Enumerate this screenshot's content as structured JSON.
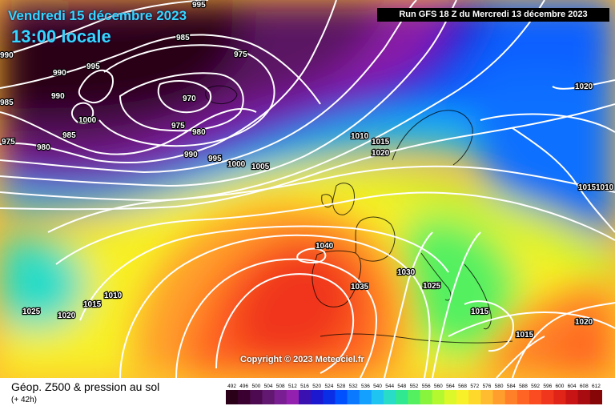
{
  "header": {
    "date_line": "Vendredi 15 décembre 2023",
    "time_line": "13:00 locale",
    "run_info": "Run GFS 18 Z du Mercredi 13 décembre 2023",
    "copyright": "Copyright © 2023 Meteociel.fr"
  },
  "legend": {
    "title": "Géop. Z500 & pression au sol",
    "subtitle": "(+ 42h)",
    "scale_values": [
      "492",
      "496",
      "500",
      "504",
      "508",
      "512",
      "516",
      "520",
      "524",
      "528",
      "532",
      "536",
      "540",
      "544",
      "548",
      "552",
      "556",
      "560",
      "564",
      "568",
      "572",
      "576",
      "580",
      "584",
      "588",
      "592",
      "596",
      "600",
      "604",
      "608",
      "612"
    ],
    "scale_colors": [
      "#2a0018",
      "#3a0030",
      "#4e0a50",
      "#621870",
      "#7a1e94",
      "#9420b0",
      "#3a10b0",
      "#1c18d0",
      "#0a2ee6",
      "#0050ff",
      "#0a78ff",
      "#14a0ff",
      "#20c4f0",
      "#28dcc8",
      "#30e890",
      "#54f060",
      "#88f43c",
      "#b4f830",
      "#dcf82a",
      "#f8f028",
      "#ffd82c",
      "#ffbc30",
      "#ff9e2c",
      "#ff8028",
      "#ff6424",
      "#fa4c20",
      "#f0361c",
      "#e02418",
      "#c81414",
      "#a80c10",
      "#860608"
    ]
  },
  "isobar_labels": [
    {
      "text": "995"
    },
    {
      "text": "985"
    },
    {
      "text": "975"
    },
    {
      "text": "990"
    },
    {
      "text": "995"
    },
    {
      "text": "990"
    },
    {
      "text": "985"
    },
    {
      "text": "970"
    },
    {
      "text": "990"
    },
    {
      "text": "1000"
    },
    {
      "text": "985"
    },
    {
      "text": "975"
    },
    {
      "text": "980"
    },
    {
      "text": "975"
    },
    {
      "text": "980"
    },
    {
      "text": "990"
    },
    {
      "text": "995"
    },
    {
      "text": "1000"
    },
    {
      "text": "1005"
    },
    {
      "text": "1010"
    },
    {
      "text": "1015"
    },
    {
      "text": "1020"
    },
    {
      "text": "1020"
    },
    {
      "text": "1015"
    },
    {
      "text": "1010"
    },
    {
      "text": "1040"
    },
    {
      "text": "1035"
    },
    {
      "text": "1030"
    },
    {
      "text": "1025"
    },
    {
      "text": "1025"
    },
    {
      "text": "1020"
    },
    {
      "text": "1015"
    },
    {
      "text": "1010"
    },
    {
      "text": "1015"
    },
    {
      "text": "1015"
    },
    {
      "text": "1020"
    }
  ],
  "field": {
    "centers": [
      {
        "name": "low-iceland",
        "pressure_hpa": 970
      },
      {
        "name": "high-azores",
        "pressure_hpa": 1040
      }
    ]
  },
  "colors": {
    "title": "#36d7ff",
    "isobar": "#ffffff",
    "coastline": "#000000"
  }
}
